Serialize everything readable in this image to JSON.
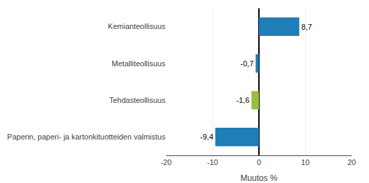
{
  "chart_data": {
    "type": "bar",
    "orientation": "horizontal",
    "categories": [
      "Kemianteollisuus",
      "Metalliteollisuus",
      "Tehdasteollisuus",
      "Paperin, paperi- ja kartonkituotteiden valmistus"
    ],
    "values": [
      8.7,
      -0.7,
      -1.6,
      -9.4
    ],
    "value_labels": [
      "8,7",
      "-0,7",
      "-1,6",
      "-9,4"
    ],
    "colors": [
      "#1f7db8",
      "#1f7db8",
      "#97be3e",
      "#1f7db8"
    ],
    "xlabel": "Muutos %",
    "xlim": [
      -20,
      20
    ],
    "xticks": [
      -20,
      -10,
      0,
      10,
      20
    ],
    "grid": true,
    "data_labels": true
  }
}
